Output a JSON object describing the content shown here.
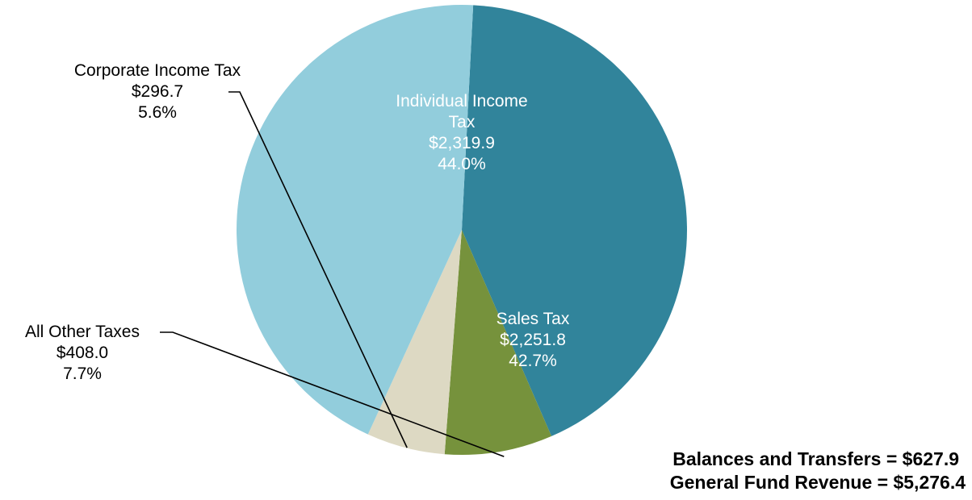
{
  "chart_data": {
    "type": "pie",
    "start_angle_deg": 87.1,
    "direction": "clockwise",
    "slices": [
      {
        "key": "sales",
        "label_lines": [
          "Sales Tax"
        ],
        "value": 2251.8,
        "value_text": "$2,251.8",
        "percent": 42.7,
        "percent_text": "42.7%",
        "color": "#31849b",
        "label_color": "#ffffff",
        "label_placement": "inside"
      },
      {
        "key": "other",
        "label_lines": [
          "All Other Taxes"
        ],
        "value": 408.0,
        "value_text": "$408.0",
        "percent": 7.7,
        "percent_text": "7.7%",
        "color": "#76923c",
        "label_color": "#000000",
        "label_placement": "outside-left"
      },
      {
        "key": "corporate",
        "label_lines": [
          "Corporate Income Tax"
        ],
        "value": 296.7,
        "value_text": "$296.7",
        "percent": 5.6,
        "percent_text": "5.6%",
        "color": "#ddd9c3",
        "label_color": "#000000",
        "label_placement": "outside-left"
      },
      {
        "key": "individual",
        "label_lines": [
          "Individual Income",
          "Tax"
        ],
        "value": 2319.9,
        "value_text": "$2,319.9",
        "percent": 44.0,
        "percent_text": "44.0%",
        "color": "#92cddc",
        "label_color": "#ffffff",
        "label_placement": "inside"
      }
    ]
  },
  "footer": {
    "balances_line": "Balances and Transfers = $627.9",
    "revenue_line": "General Fund Revenue = $5,276.4"
  }
}
